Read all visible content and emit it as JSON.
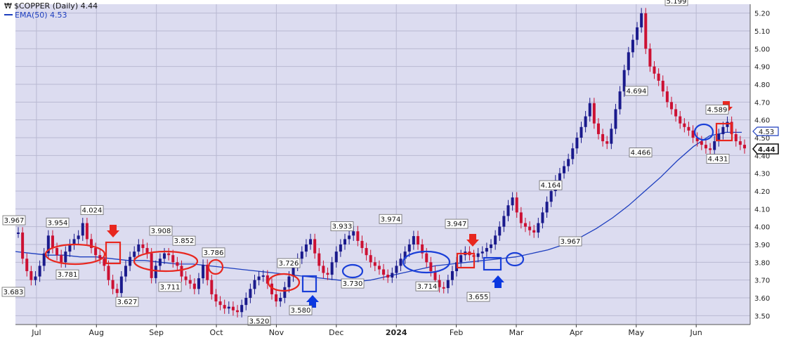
{
  "legend": {
    "symbol": "₩",
    "title": "$COPPER (Daily) 4.44",
    "ema_label": "EMA(50) 4.53"
  },
  "right_labels": {
    "price_tag": "4.44",
    "ema_tag": "4.53"
  },
  "colors": {
    "background": "#dcdcf0",
    "grid": "#b9b9d2",
    "up_bar": "#1a1a8c",
    "down_bar": "#cc1133",
    "ema": "#1e3fbf",
    "mark_red": "#e8271f",
    "mark_blue": "#1a3fd8",
    "arrow_blue": "#0b38e0"
  },
  "chart_data": {
    "type": "candlestick",
    "title": "$COPPER (Daily) 4.44",
    "ylim": [
      3.45,
      5.25
    ],
    "y_ticks": [
      "3.50",
      "3.60",
      "3.70",
      "3.80",
      "3.90",
      "4.00",
      "4.10",
      "4.20",
      "4.30",
      "4.40",
      "4.50",
      "4.60",
      "4.70",
      "4.80",
      "4.90",
      "5.00",
      "5.10",
      "5.20"
    ],
    "x_ticks": [
      {
        "label": "Jul",
        "bold": false
      },
      {
        "label": "Aug",
        "bold": false
      },
      {
        "label": "Sep",
        "bold": false
      },
      {
        "label": "Oct",
        "bold": false
      },
      {
        "label": "Nov",
        "bold": false
      },
      {
        "label": "Dec",
        "bold": false
      },
      {
        "label": "2024",
        "bold": true
      },
      {
        "label": "Feb",
        "bold": false
      },
      {
        "label": "Mar",
        "bold": false
      },
      {
        "label": "Apr",
        "bold": false
      },
      {
        "label": "May",
        "bold": false
      },
      {
        "label": "Jun",
        "bold": false
      }
    ],
    "series_close": [
      3.967,
      3.82,
      3.75,
      3.7,
      3.72,
      3.78,
      3.85,
      3.95,
      3.88,
      3.84,
      3.8,
      3.86,
      3.9,
      3.93,
      3.95,
      4.02,
      3.93,
      3.88,
      3.84,
      3.82,
      3.78,
      3.7,
      3.65,
      3.627,
      3.72,
      3.78,
      3.83,
      3.86,
      3.9,
      3.88,
      3.85,
      3.711,
      3.78,
      3.82,
      3.85,
      3.84,
      3.8,
      3.78,
      3.72,
      3.7,
      3.68,
      3.65,
      3.71,
      3.786,
      3.7,
      3.62,
      3.58,
      3.56,
      3.54,
      3.55,
      3.53,
      3.52,
      3.56,
      3.6,
      3.65,
      3.7,
      3.72,
      3.726,
      3.68,
      3.62,
      3.58,
      3.6,
      3.66,
      3.72,
      3.78,
      3.82,
      3.86,
      3.9,
      3.93,
      3.85,
      3.78,
      3.74,
      3.73,
      3.8,
      3.86,
      3.9,
      3.93,
      3.95,
      3.974,
      3.92,
      3.88,
      3.84,
      3.8,
      3.78,
      3.76,
      3.73,
      3.714,
      3.74,
      3.78,
      3.82,
      3.86,
      3.9,
      3.947,
      3.9,
      3.85,
      3.8,
      3.75,
      3.7,
      3.66,
      3.655,
      3.7,
      3.75,
      3.8,
      3.84,
      3.86,
      3.84,
      3.83,
      3.85,
      3.86,
      3.88,
      3.9,
      3.95,
      4.0,
      4.06,
      4.12,
      4.164,
      4.08,
      4.02,
      4.0,
      3.98,
      3.967,
      4.02,
      4.08,
      4.14,
      4.2,
      4.26,
      4.3,
      4.34,
      4.38,
      4.44,
      4.5,
      4.56,
      4.62,
      4.694,
      4.58,
      4.52,
      4.48,
      4.466,
      4.55,
      4.66,
      4.76,
      4.88,
      4.98,
      5.05,
      5.12,
      5.199,
      5.0,
      4.9,
      4.86,
      4.82,
      4.76,
      4.7,
      4.66,
      4.62,
      4.58,
      4.56,
      4.54,
      4.5,
      4.48,
      4.46,
      4.44,
      4.431,
      4.48,
      4.52,
      4.56,
      4.589,
      4.52,
      4.48,
      4.46,
      4.44
    ],
    "ema50": [
      3.86,
      3.85,
      3.84,
      3.84,
      3.83,
      3.83,
      3.82,
      3.81,
      3.81,
      3.8,
      3.79,
      3.79,
      3.78,
      3.77,
      3.76,
      3.75,
      3.74,
      3.73,
      3.72,
      3.71,
      3.7,
      3.69,
      3.7,
      3.72,
      3.74,
      3.76,
      3.78,
      3.79,
      3.8,
      3.81,
      3.82,
      3.83,
      3.85,
      3.87,
      3.9,
      3.94,
      3.99,
      4.05,
      4.12,
      4.2,
      4.28,
      4.37,
      4.45,
      4.51,
      4.53,
      4.53
    ],
    "callouts": [
      {
        "label": "3.967",
        "value": 3.967,
        "pos": "above"
      },
      {
        "label": "3.954",
        "value": 3.954,
        "pos": "above"
      },
      {
        "label": "4.024",
        "value": 4.024,
        "pos": "above"
      },
      {
        "label": "3.683",
        "value": 3.683,
        "pos": "below"
      },
      {
        "label": "3.781",
        "value": 3.781,
        "pos": "below"
      },
      {
        "label": "3.908",
        "value": 3.908,
        "pos": "above"
      },
      {
        "label": "3.852",
        "value": 3.852,
        "pos": "above"
      },
      {
        "label": "3.627",
        "value": 3.627,
        "pos": "below"
      },
      {
        "label": "3.711",
        "value": 3.711,
        "pos": "below"
      },
      {
        "label": "3.786",
        "value": 3.786,
        "pos": "above"
      },
      {
        "label": "3.726",
        "value": 3.726,
        "pos": "above"
      },
      {
        "label": "3.520",
        "value": 3.52,
        "pos": "below"
      },
      {
        "label": "3.580",
        "value": 3.58,
        "pos": "below"
      },
      {
        "label": "3.933",
        "value": 3.933,
        "pos": "above"
      },
      {
        "label": "3.730",
        "value": 3.73,
        "pos": "below"
      },
      {
        "label": "3.974",
        "value": 3.974,
        "pos": "above"
      },
      {
        "label": "3.714",
        "value": 3.714,
        "pos": "below"
      },
      {
        "label": "3.947",
        "value": 3.947,
        "pos": "above"
      },
      {
        "label": "3.655",
        "value": 3.655,
        "pos": "below"
      },
      {
        "label": "4.164",
        "value": 4.164,
        "pos": "above"
      },
      {
        "label": "3.967",
        "value": 3.967,
        "pos": "below"
      },
      {
        "label": "4.694",
        "value": 4.694,
        "pos": "above"
      },
      {
        "label": "4.466",
        "value": 4.466,
        "pos": "below"
      },
      {
        "label": "5.199",
        "value": 5.199,
        "pos": "above"
      },
      {
        "label": "4.589",
        "value": 4.589,
        "pos": "above"
      },
      {
        "label": "4.431",
        "value": 4.431,
        "pos": "below"
      }
    ],
    "grid": true,
    "legend_position": "top-left"
  }
}
